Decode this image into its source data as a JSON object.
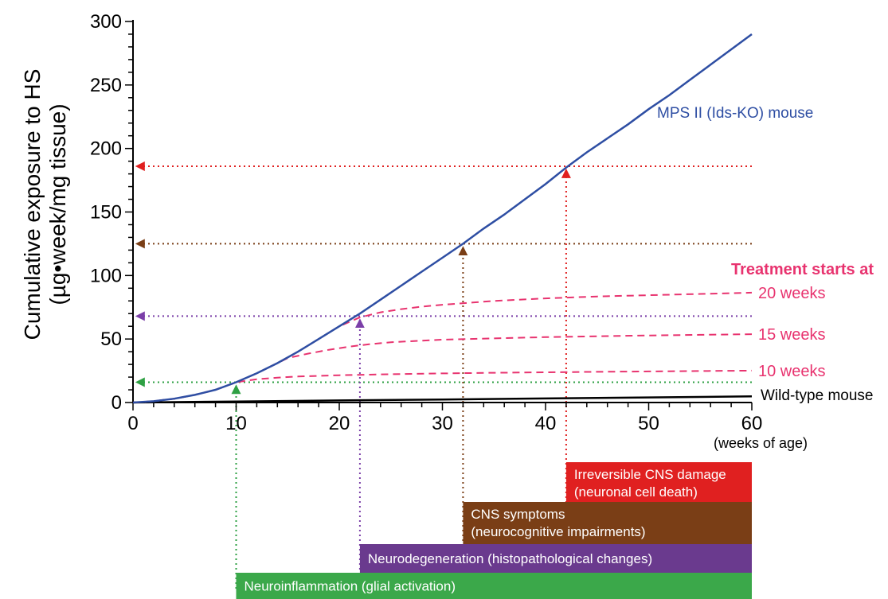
{
  "chart_data": {
    "type": "line",
    "xlabel": "(weeks of age)",
    "ylabel_line1": "Cumulative exposure to HS",
    "ylabel_line2": "(µg•week/mg tissue)",
    "xlim": [
      0,
      60
    ],
    "ylim": [
      0,
      300
    ],
    "x_ticks": [
      0,
      10,
      20,
      30,
      40,
      50,
      60
    ],
    "y_ticks": [
      0,
      50,
      100,
      150,
      200,
      250,
      300
    ],
    "grid": false,
    "series": [
      {
        "name": "MPS II (Ids-KO) mouse",
        "color": "#2e4ea3",
        "style": "solid",
        "x": [
          0,
          2,
          4,
          6,
          8,
          10,
          12,
          14,
          16,
          18,
          20,
          22,
          24,
          26,
          28,
          30,
          32,
          34,
          36,
          38,
          40,
          42,
          44,
          46,
          48,
          50,
          52,
          54,
          56,
          58,
          60
        ],
        "y": [
          0,
          1,
          3,
          6,
          10,
          16,
          23,
          31,
          40,
          50,
          60,
          70,
          81,
          92,
          103,
          114,
          125,
          137,
          148,
          160,
          172,
          185,
          197,
          208,
          219,
          231,
          242,
          254,
          266,
          278,
          290
        ]
      },
      {
        "name": "Wild-type mouse",
        "color": "#000000",
        "style": "solid",
        "x": [
          0,
          10,
          20,
          30,
          40,
          50,
          60
        ],
        "y": [
          0,
          0.8,
          1.6,
          2.4,
          3.2,
          4.0,
          4.8
        ]
      },
      {
        "name": "20 weeks",
        "color": "#e8336f",
        "style": "dashed",
        "x": [
          0,
          2,
          4,
          6,
          8,
          10,
          12,
          14,
          16,
          18,
          20,
          22,
          24,
          26,
          28,
          30,
          35,
          40,
          45,
          50,
          55,
          60
        ],
        "y": [
          0,
          1,
          3,
          6,
          10,
          16,
          23,
          31,
          40,
          50,
          60,
          67,
          71,
          73.5,
          75.5,
          77,
          80,
          82,
          83.5,
          84.5,
          85.5,
          86.5
        ]
      },
      {
        "name": "15 weeks",
        "color": "#e8336f",
        "style": "dashed",
        "x": [
          0,
          2,
          4,
          6,
          8,
          10,
          12,
          14,
          15,
          17,
          19,
          21,
          23,
          25,
          30,
          35,
          40,
          45,
          50,
          55,
          60
        ],
        "y": [
          0,
          1,
          3,
          6,
          10,
          16,
          23,
          31,
          35,
          38.5,
          41.5,
          44,
          46,
          47.5,
          49.5,
          50.5,
          51.5,
          52.2,
          52.8,
          53.3,
          53.8
        ]
      },
      {
        "name": "10 weeks",
        "color": "#e8336f",
        "style": "dashed",
        "x": [
          0,
          2,
          4,
          6,
          8,
          10,
          12,
          14,
          16,
          20,
          25,
          30,
          35,
          40,
          45,
          50,
          55,
          60
        ],
        "y": [
          0,
          1,
          3,
          6,
          10,
          16,
          18.3,
          19.6,
          20.5,
          21.5,
          22.3,
          22.9,
          23.4,
          23.8,
          24.2,
          24.5,
          24.8,
          25.1
        ]
      }
    ],
    "treatment_title": "Treatment starts at",
    "treatment_labels": [
      {
        "text": "20 weeks",
        "y": 86.5
      },
      {
        "text": "15 weeks",
        "y": 53.8
      },
      {
        "text": "10 weeks",
        "y": 25.1
      }
    ],
    "series_labels": {
      "mps": "MPS II (Ids-KO) mouse",
      "wt": "Wild-type mouse"
    },
    "thresholds": [
      {
        "x": 10,
        "y": 16,
        "color": "#2ea043"
      },
      {
        "x": 22,
        "y": 68,
        "color": "#7b3fa8"
      },
      {
        "x": 32,
        "y": 125,
        "color": "#7a3e16"
      },
      {
        "x": 42,
        "y": 186,
        "color": "#e02020"
      }
    ],
    "phases": [
      {
        "label": "Neuroinflammation (glial activation)",
        "start": 10,
        "end": 60,
        "color": "#3ba84a"
      },
      {
        "label": "Neurodegeneration (histopathological changes)",
        "start": 22,
        "end": 60,
        "color": "#6a3a8e"
      },
      {
        "label1": "CNS symptoms",
        "label2": "(neurocognitive impairments)",
        "start": 32,
        "end": 60,
        "color": "#7a3e16"
      },
      {
        "label1": "Irreversible CNS damage",
        "label2": "(neuronal cell death)",
        "start": 42,
        "end": 60,
        "color": "#e02020"
      }
    ]
  }
}
